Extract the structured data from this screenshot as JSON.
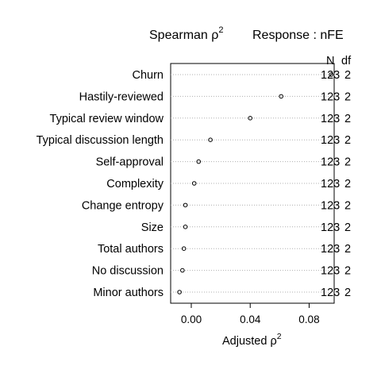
{
  "chart_data": {
    "type": "dotchart",
    "title_prefix": "Spearman ρ",
    "title_sup": "2",
    "response_label": "Response : nFE",
    "xlabel_prefix": "Adjusted ρ",
    "xlabel_sup": "2",
    "xlim": [
      -0.014,
      0.097
    ],
    "xticks": [
      0.0,
      0.04,
      0.08
    ],
    "xtick_labels": [
      "0.00",
      "0.04",
      "0.08"
    ],
    "col_headers": [
      "N",
      "df"
    ],
    "grid": "dotted-horizontal",
    "rows": [
      {
        "label": "Churn",
        "value": 0.095,
        "n": "123",
        "df": "2"
      },
      {
        "label": "Hastily-reviewed",
        "value": 0.061,
        "n": "123",
        "df": "2"
      },
      {
        "label": "Typical review window",
        "value": 0.04,
        "n": "123",
        "df": "2"
      },
      {
        "label": "Typical discussion length",
        "value": 0.013,
        "n": "123",
        "df": "2"
      },
      {
        "label": "Self-approval",
        "value": 0.005,
        "n": "123",
        "df": "2"
      },
      {
        "label": "Complexity",
        "value": 0.002,
        "n": "123",
        "df": "2"
      },
      {
        "label": "Change entropy",
        "value": -0.004,
        "n": "123",
        "df": "2"
      },
      {
        "label": "Size",
        "value": -0.004,
        "n": "123",
        "df": "2"
      },
      {
        "label": "Total authors",
        "value": -0.005,
        "n": "123",
        "df": "2"
      },
      {
        "label": "No discussion",
        "value": -0.006,
        "n": "123",
        "df": "2"
      },
      {
        "label": "Minor authors",
        "value": -0.008,
        "n": "123",
        "df": "2"
      }
    ]
  }
}
